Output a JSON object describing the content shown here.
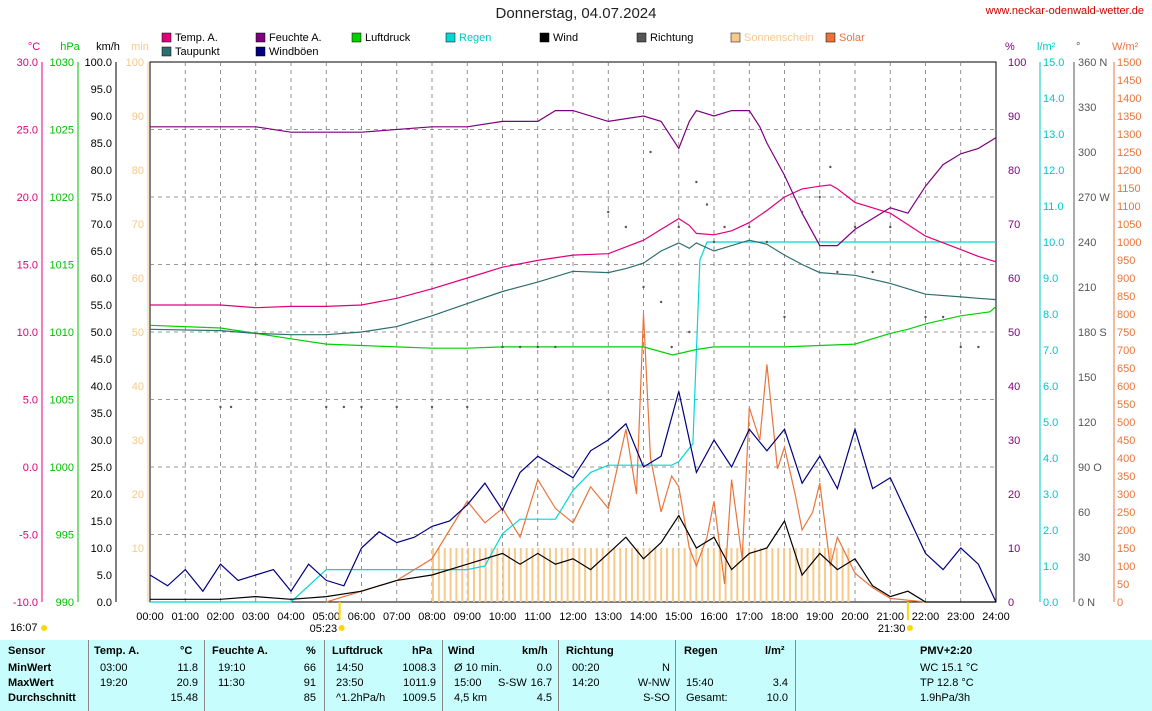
{
  "title": "Donnerstag, 04.07.2024",
  "url": "www.neckar-odenwald-wetter.de",
  "legend": [
    {
      "label": "Temp. A.",
      "color": "#e0007a"
    },
    {
      "label": "Taupunkt",
      "color": "#2f6e6e"
    },
    {
      "label": "Feuchte A.",
      "color": "#7d007d"
    },
    {
      "label": "Windböen",
      "color": "#000080"
    },
    {
      "label": "Luftdruck",
      "color": "#00d000"
    },
    {
      "label": "Regen",
      "color": "#00d8d8"
    },
    {
      "label": "Wind",
      "color": "#000000"
    },
    {
      "label": "Richtung",
      "color": "#555555"
    },
    {
      "label": "Sonnenschein",
      "color": "#f7c98a"
    },
    {
      "label": "Solar",
      "color": "#e9743a"
    }
  ],
  "axis_units": {
    "temp": "°C",
    "press": "hPa",
    "wind": "km/h",
    "sun": "min",
    "hum": "%",
    "rain": "l/m²",
    "dir": "°",
    "solar": "W/m²"
  },
  "sunrise_marker": {
    "start": "16:07",
    "sunrise": "05:23",
    "sunset": "21:30"
  },
  "chart_data": {
    "type": "line",
    "x_label": "time",
    "x_ticks": [
      "00:00",
      "01:00",
      "02:00",
      "03:00",
      "04:00",
      "05:00",
      "06:00",
      "07:00",
      "08:00",
      "09:00",
      "10:00",
      "11:00",
      "12:00",
      "13:00",
      "14:00",
      "15:00",
      "16:00",
      "17:00",
      "18:00",
      "19:00",
      "20:00",
      "21:00",
      "22:00",
      "23:00",
      "24:00"
    ],
    "axes": {
      "temp_c": {
        "range": [
          -10,
          30
        ],
        "ticks": [
          30,
          25,
          20,
          15,
          10,
          5,
          0,
          -5,
          -10
        ]
      },
      "pressure_hpa": {
        "range": [
          990,
          1030
        ],
        "ticks": [
          1030,
          1025,
          1020,
          1015,
          1010,
          1005,
          1000,
          995,
          990
        ]
      },
      "wind_kmh": {
        "range": [
          0,
          100
        ],
        "ticks": [
          100,
          95,
          90,
          85,
          80,
          75,
          70,
          65,
          60,
          55,
          50,
          45,
          40,
          35,
          30,
          25,
          20,
          15,
          10,
          5,
          0
        ]
      },
      "sunshine_min": {
        "range": [
          0,
          100
        ],
        "ticks": [
          100,
          90,
          80,
          70,
          60,
          50,
          40,
          30,
          20,
          10
        ]
      },
      "humidity_pct": {
        "range": [
          0,
          100
        ],
        "ticks": [
          100,
          90,
          80,
          70,
          60,
          50,
          40,
          30,
          20,
          10,
          0
        ]
      },
      "rain_lm2": {
        "range": [
          0,
          15
        ],
        "ticks": [
          15,
          14,
          13,
          12,
          11,
          10,
          9,
          8,
          7,
          6,
          5,
          4,
          3,
          2,
          1,
          0
        ]
      },
      "direction_deg": {
        "range": [
          0,
          360
        ],
        "ticks": [
          "360 N",
          "330",
          "300",
          "270 W",
          "240",
          "210",
          "180 S",
          "150",
          "120",
          "90 O",
          "60",
          "30",
          "0 N"
        ]
      },
      "solar_wm2": {
        "range": [
          0,
          1500
        ],
        "ticks": [
          1500,
          1450,
          1400,
          1350,
          1300,
          1250,
          1200,
          1150,
          1100,
          1050,
          1000,
          950,
          900,
          850,
          800,
          750,
          700,
          650,
          600,
          550,
          500,
          450,
          400,
          350,
          300,
          250,
          200,
          150,
          100,
          50,
          0
        ]
      }
    },
    "series": [
      {
        "name": "Temp. A.",
        "unit": "°C",
        "x": [
          0,
          2,
          3,
          4,
          5,
          6,
          7,
          8,
          9,
          10,
          11,
          12,
          13,
          13.5,
          14,
          14.5,
          15,
          15.3,
          15.5,
          16,
          16.5,
          17,
          17.5,
          18,
          18.5,
          19,
          19.3,
          19.5,
          20,
          21,
          22,
          23,
          23.5,
          24
        ],
        "y": [
          12.0,
          12.0,
          11.8,
          11.9,
          11.9,
          12.0,
          12.5,
          13.2,
          14.0,
          14.8,
          15.3,
          15.7,
          15.8,
          16.3,
          16.8,
          17.6,
          18.4,
          17.9,
          17.3,
          17.2,
          17.5,
          18.1,
          19.0,
          20.0,
          20.6,
          20.8,
          20.9,
          20.6,
          19.6,
          18.8,
          17.1,
          16.1,
          15.6,
          15.2
        ]
      },
      {
        "name": "Taupunkt",
        "unit": "°C",
        "x": [
          0,
          2,
          3,
          4,
          5,
          6,
          7,
          8,
          9,
          10,
          11,
          12,
          13,
          13.5,
          14,
          14.5,
          15,
          15.3,
          15.5,
          16,
          16.5,
          17,
          17.5,
          18,
          18.5,
          19,
          20,
          21,
          22,
          23,
          23.5,
          24
        ],
        "y": [
          10.2,
          10.1,
          9.9,
          9.8,
          9.8,
          10.0,
          10.4,
          11.2,
          12.1,
          13.0,
          13.7,
          14.5,
          14.4,
          14.7,
          15.1,
          16.0,
          16.6,
          16.2,
          16.6,
          16.0,
          16.4,
          16.8,
          16.5,
          15.7,
          15.0,
          14.4,
          14.2,
          13.6,
          12.8,
          12.6,
          12.5,
          12.4
        ]
      },
      {
        "name": "Luftdruck",
        "unit": "hPa",
        "x": [
          0,
          2,
          3,
          4,
          5,
          6,
          7,
          8,
          9,
          10,
          11,
          12,
          13,
          14,
          14.83,
          15.5,
          16,
          17,
          18,
          19,
          20,
          21,
          21.5,
          22,
          23,
          23.83,
          24
        ],
        "y": [
          1010.5,
          1010.3,
          1009.9,
          1009.5,
          1009.1,
          1009.0,
          1008.9,
          1008.8,
          1008.8,
          1008.9,
          1008.9,
          1008.9,
          1008.9,
          1008.9,
          1008.3,
          1008.7,
          1008.9,
          1008.9,
          1008.9,
          1009.0,
          1009.1,
          1009.9,
          1010.2,
          1010.6,
          1011.2,
          1011.5,
          1011.9
        ]
      },
      {
        "name": "Feuchte A.",
        "unit": "%",
        "x": [
          0,
          3,
          4,
          6,
          8,
          9,
          10,
          11,
          11.5,
          12,
          13,
          14,
          14.5,
          15,
          15.3,
          15.5,
          16,
          16.5,
          17,
          17.3,
          17.5,
          18,
          18.5,
          19,
          19.17,
          19.5,
          20,
          21,
          21.5,
          22,
          22.5,
          23,
          23.5,
          24
        ],
        "y": [
          88,
          88,
          87,
          87,
          88,
          88,
          89,
          89,
          91,
          91,
          89,
          90,
          89,
          84,
          89,
          91,
          90,
          91,
          91,
          88,
          85,
          79,
          72,
          66,
          66,
          66,
          69,
          73,
          72,
          77,
          81,
          83,
          84,
          86
        ]
      },
      {
        "name": "Wind",
        "unit": "km/h",
        "x": [
          0,
          1,
          2,
          3,
          4,
          5,
          6,
          7,
          8,
          9,
          10,
          10.5,
          11,
          11.5,
          12,
          12.5,
          13,
          13.5,
          14,
          14.5,
          15,
          15.5,
          16,
          16.5,
          17,
          17.5,
          18,
          18.5,
          19,
          19.5,
          20,
          20.5,
          21,
          21.5,
          22,
          23,
          24
        ],
        "y": [
          0.5,
          0.5,
          0.5,
          1,
          0.5,
          1,
          2,
          4,
          5,
          7,
          9,
          7,
          9,
          7,
          8,
          6,
          9,
          12,
          8,
          11,
          16,
          10,
          12,
          6,
          9,
          10,
          15,
          5,
          9,
          6,
          8,
          3,
          1,
          2,
          0,
          0,
          0
        ]
      },
      {
        "name": "Windböen",
        "unit": "km/h",
        "x": [
          0,
          0.5,
          1,
          1.5,
          2,
          2.5,
          3,
          3.5,
          4,
          4.5,
          5,
          5.5,
          6,
          6.5,
          7,
          7.5,
          8,
          8.5,
          9,
          9.5,
          10,
          10.5,
          11,
          11.5,
          12,
          12.5,
          13,
          13.5,
          14,
          14.5,
          15,
          15.5,
          16,
          16.5,
          17,
          17.5,
          18,
          18.5,
          19,
          19.5,
          20,
          20.5,
          21,
          21.5,
          22,
          22.5,
          23,
          23.5,
          24
        ],
        "y": [
          5,
          3,
          6,
          2,
          7,
          4,
          5,
          6,
          2,
          7,
          4,
          3,
          10,
          13,
          11,
          12,
          14,
          15,
          18,
          22,
          17,
          24,
          27,
          25,
          23,
          28,
          30,
          33,
          25,
          27,
          39,
          24,
          30,
          25,
          32,
          28,
          32,
          22,
          27,
          21,
          32,
          21,
          23,
          16,
          9,
          6,
          10,
          7,
          0
        ]
      },
      {
        "name": "Regen",
        "unit": "l/m²",
        "x": [
          0,
          4,
          5,
          6,
          7,
          8,
          9,
          9.5,
          10,
          10.5,
          11,
          11.5,
          12,
          12.5,
          13,
          14,
          14.8,
          15,
          15.4,
          15.6,
          15.8,
          16,
          17,
          18,
          19,
          20,
          21,
          22,
          23,
          24
        ],
        "y": [
          0,
          0,
          0.9,
          0.9,
          0.9,
          0.9,
          0.9,
          1.0,
          1.9,
          2.3,
          2.3,
          2.3,
          3.1,
          3.6,
          3.8,
          3.8,
          3.8,
          3.9,
          4.4,
          9.5,
          10.0,
          10.0,
          10.0,
          10.0,
          10.0,
          10.0,
          10.0,
          10.0,
          10.0,
          10.0
        ]
      },
      {
        "name": "Solar",
        "unit": "W/m²",
        "x": [
          5,
          6,
          7,
          8,
          8.5,
          9,
          9.5,
          10,
          10.5,
          11,
          11.5,
          12,
          12.5,
          13,
          13.5,
          13.8,
          14,
          14.2,
          14.5,
          14.8,
          15,
          15.3,
          15.5,
          15.8,
          16,
          16.3,
          16.5,
          16.8,
          17,
          17.3,
          17.5,
          17.8,
          18,
          18.3,
          18.5,
          18.8,
          19,
          19.3,
          19.5,
          19.8,
          20,
          20.5,
          21,
          21.5,
          22
        ],
        "y": [
          0,
          30,
          60,
          120,
          200,
          280,
          220,
          260,
          180,
          340,
          260,
          220,
          320,
          260,
          480,
          300,
          800,
          400,
          250,
          350,
          320,
          150,
          100,
          180,
          280,
          50,
          340,
          120,
          540,
          450,
          660,
          370,
          430,
          300,
          200,
          250,
          330,
          100,
          180,
          120,
          80,
          40,
          10,
          5,
          0
        ]
      },
      {
        "name": "Sonnenschein",
        "unit": "min",
        "x": [
          8,
          9,
          10,
          11,
          12,
          13,
          14,
          15,
          16,
          17,
          18,
          19,
          19.8
        ],
        "y": [
          10,
          10,
          10,
          10,
          10,
          10,
          10,
          10,
          10,
          10,
          10,
          10,
          10
        ]
      },
      {
        "name": "Richtung",
        "unit": "°",
        "x": [
          2,
          2.3,
          5,
          5.5,
          6,
          7,
          8,
          9,
          10,
          10.5,
          11,
          11.5,
          13,
          13.5,
          14,
          14.2,
          14.5,
          14.8,
          15,
          15.3,
          15.5,
          15.8,
          16,
          16.3,
          17,
          17.5,
          18,
          18.5,
          19,
          19.3,
          19.5,
          20,
          20.5,
          21,
          22,
          22.5,
          23,
          23.5
        ],
        "y": [
          130,
          130,
          130,
          130,
          130,
          130,
          130,
          130,
          170,
          170,
          170,
          170,
          260,
          250,
          210,
          300,
          200,
          170,
          250,
          180,
          280,
          265,
          240,
          250,
          250,
          240,
          190,
          260,
          270,
          290,
          220,
          250,
          220,
          250,
          190,
          190,
          170,
          170
        ]
      }
    ]
  },
  "stats": {
    "headers": [
      {
        "title": "Sensor",
        "unit": ""
      },
      {
        "title": "Temp. A.",
        "unit": "°C"
      },
      {
        "title": "Feuchte A.",
        "unit": "%"
      },
      {
        "title": "Luftdruck",
        "unit": "hPa"
      },
      {
        "title": "Wind",
        "unit": "km/h"
      },
      {
        "title": "Richtung",
        "unit": ""
      },
      {
        "title": "Regen",
        "unit": "l/m²"
      },
      {
        "title": "PMV+2:20",
        "unit": ""
      }
    ],
    "row_labels": [
      "MinWert",
      "MaxWert",
      "Durchschnitt"
    ],
    "temp": [
      [
        "03:00",
        "11.8"
      ],
      [
        "19:20",
        "20.9"
      ],
      [
        "",
        "15.48"
      ]
    ],
    "hum": [
      [
        "19:10",
        "66"
      ],
      [
        "11:30",
        "91"
      ],
      [
        "",
        "85"
      ]
    ],
    "press": [
      [
        "14:50",
        "1008.3"
      ],
      [
        "23:50",
        "1011.9"
      ],
      [
        "^1.2hPa/h",
        "1009.5"
      ]
    ],
    "wind": [
      [
        "Ø 10 min.",
        "",
        "0.0"
      ],
      [
        "15:00",
        "S-SW",
        "16.7"
      ],
      [
        "4,5 km",
        "",
        "4.5"
      ]
    ],
    "dir": [
      [
        "00:20",
        "N"
      ],
      [
        "14:20",
        "W-NW"
      ],
      [
        "",
        "S-SO"
      ]
    ],
    "rain": [
      [
        "",
        ""
      ],
      [
        "15:40",
        "3.4"
      ],
      [
        "Gesamt:",
        "10.0"
      ]
    ],
    "pmv": [
      "WC 15.1 °C",
      "TP 12.8 °C",
      "1.9hPa/3h"
    ]
  }
}
